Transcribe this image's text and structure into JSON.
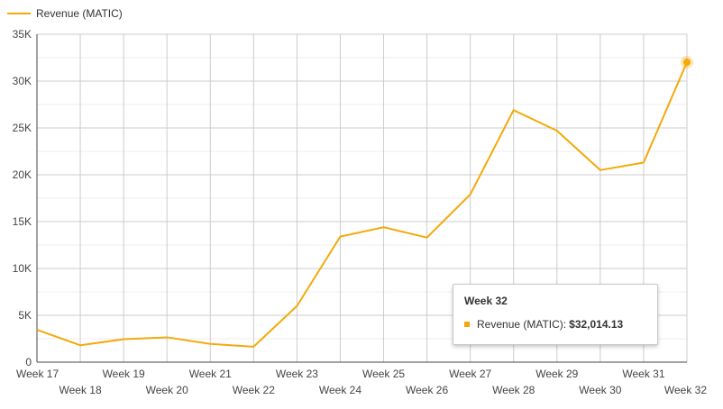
{
  "chart_data": {
    "type": "line",
    "categories": [
      "Week 17",
      "Week 18",
      "Week 19",
      "Week 20",
      "Week 21",
      "Week 22",
      "Week 23",
      "Week 24",
      "Week 25",
      "Week 26",
      "Week 27",
      "Week 28",
      "Week 29",
      "Week 30",
      "Week 31",
      "Week 32"
    ],
    "series": [
      {
        "name": "Revenue (MATIC)",
        "color": "#f4a90a",
        "values": [
          3450,
          1800,
          2450,
          2650,
          1950,
          1650,
          6000,
          13400,
          14400,
          13300,
          17900,
          26900,
          24700,
          20500,
          21300,
          32014.13
        ]
      }
    ],
    "y_ticks": [
      "0",
      "5K",
      "10K",
      "15K",
      "20K",
      "25K",
      "30K",
      "35K"
    ],
    "ylim": [
      0,
      35000
    ],
    "grid": true,
    "legend": {
      "position": "top-left",
      "label": "Revenue (MATIC)"
    },
    "tooltip": {
      "title": "Week 32",
      "series_label": "Revenue (MATIC):",
      "value": "$32,014.13"
    }
  }
}
